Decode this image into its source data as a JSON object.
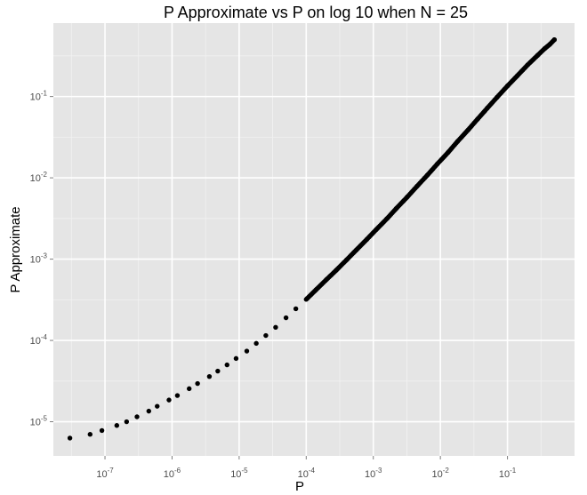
{
  "chart_data": {
    "type": "scatter",
    "title": "P Approximate vs P on log 10 when N = 25",
    "xlabel": "P",
    "ylabel": "P Approximate",
    "x_scale": "log10",
    "y_scale": "log10",
    "xlim": [
      1.7e-08,
      1.0
    ],
    "ylim": [
      3.8e-06,
      0.8
    ],
    "x_ticks": [
      {
        "value": 1e-07,
        "base": "10",
        "exp": "-7"
      },
      {
        "value": 1e-06,
        "base": "10",
        "exp": "-6"
      },
      {
        "value": 1e-05,
        "base": "10",
        "exp": "-5"
      },
      {
        "value": 0.0001,
        "base": "10",
        "exp": "-4"
      },
      {
        "value": 0.001,
        "base": "10",
        "exp": "-3"
      },
      {
        "value": 0.01,
        "base": "10",
        "exp": "-2"
      },
      {
        "value": 0.1,
        "base": "10",
        "exp": "-1"
      }
    ],
    "y_ticks": [
      {
        "value": 1e-05,
        "base": "10",
        "exp": "-5"
      },
      {
        "value": 0.0001,
        "base": "10",
        "exp": "-4"
      },
      {
        "value": 0.001,
        "base": "10",
        "exp": "-3"
      },
      {
        "value": 0.01,
        "base": "10",
        "exp": "-2"
      },
      {
        "value": 0.1,
        "base": "10",
        "exp": "-1"
      }
    ],
    "series": [
      {
        "name": "P Approximate",
        "x": [
          3e-08,
          6e-08,
          9e-08,
          1.5e-07,
          2.1e-07,
          3e-07,
          4.5e-07,
          6e-07,
          9e-07,
          1.2e-06,
          1.8e-06,
          2.4e-06,
          3.6e-06,
          4.8e-06,
          6.6e-06,
          9e-06,
          1.3e-05,
          1.8e-05,
          2.5e-05,
          3.5e-05,
          5e-05,
          7e-05,
          0.0001,
          0.00014,
          0.0002,
          0.00028,
          0.0004,
          0.00056,
          0.0008,
          0.0011,
          0.0016,
          0.0022,
          0.0032,
          0.0045,
          0.0064,
          0.009,
          0.013,
          0.018,
          0.026,
          0.036,
          0.05,
          0.07,
          0.1,
          0.14,
          0.2,
          0.28,
          0.36,
          0.43,
          0.5
        ],
        "values": [
          6.3e-06,
          7e-06,
          7.8e-06,
          9e-06,
          1e-05,
          1.15e-05,
          1.35e-05,
          1.55e-05,
          1.85e-05,
          2.1e-05,
          2.55e-05,
          2.95e-05,
          3.6e-05,
          4.2e-05,
          5e-05,
          6e-05,
          7.4e-05,
          9.2e-05,
          0.000115,
          0.000145,
          0.00019,
          0.000245,
          0.00032,
          0.00042,
          0.00056,
          0.00073,
          0.00098,
          0.0013,
          0.00175,
          0.0023,
          0.00315,
          0.0042,
          0.0058,
          0.0079,
          0.0108,
          0.0148,
          0.0205,
          0.028,
          0.039,
          0.053,
          0.072,
          0.098,
          0.135,
          0.18,
          0.245,
          0.32,
          0.39,
          0.44,
          0.5
        ]
      }
    ]
  }
}
